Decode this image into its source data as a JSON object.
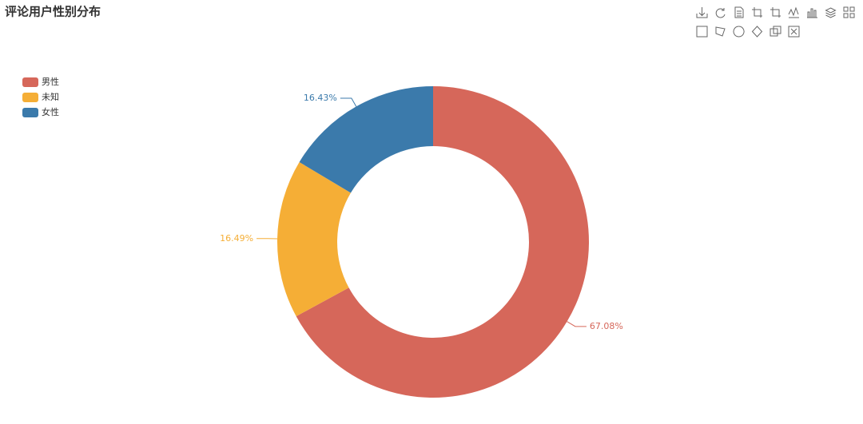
{
  "chart_data": {
    "type": "pie",
    "title": "评论用户性别分布",
    "categories": [
      "男性",
      "未知",
      "女性"
    ],
    "values": [
      67.08,
      16.49,
      16.43
    ],
    "value_labels": [
      "67.08%",
      "16.49%",
      "16.43%"
    ],
    "colors": [
      "#d6675a",
      "#f5ae36",
      "#3b7aab"
    ],
    "legend": "top-left"
  }
}
